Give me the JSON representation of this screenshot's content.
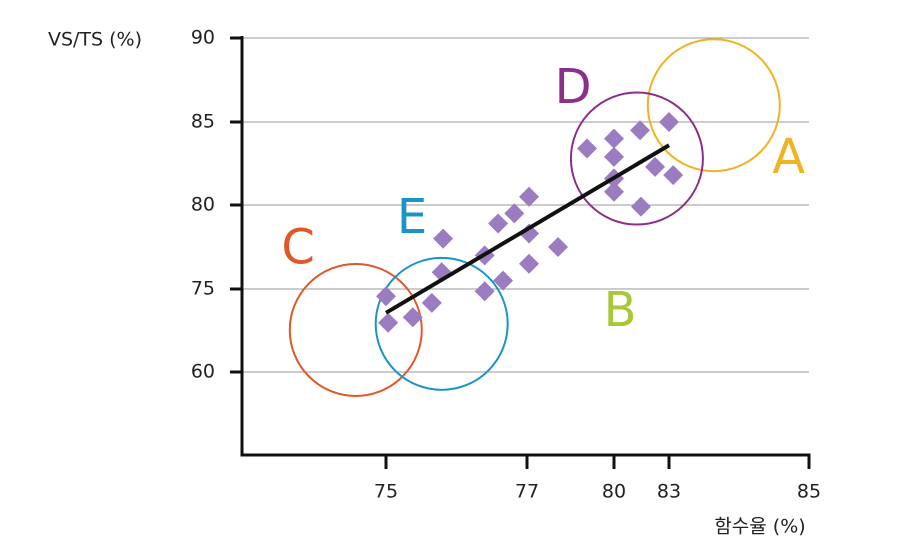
{
  "chart_data": {
    "type": "scatter",
    "y_label": "VS/TS (%)",
    "x_label": "함수율 (%)",
    "xlim": [
      73,
      85
    ],
    "xticks": [
      75,
      77,
      80,
      83,
      85
    ],
    "ylim": [
      45,
      90
    ],
    "yticks": [
      60,
      75,
      80,
      85,
      90
    ],
    "grid": true,
    "series": [
      {
        "color": "#9b7cc0",
        "x": [
          75,
          75.03,
          75.38,
          75.65,
          75.81,
          75.79,
          76.4,
          76.4,
          76.66,
          76.59,
          76.82,
          77.07,
          77.07,
          77.07,
          78.07,
          79.07,
          80,
          80,
          80,
          80,
          81.42,
          81.47,
          82.24,
          83,
          83.06
        ],
        "y": [
          73.7,
          68.9,
          69.9,
          72.5,
          78.0,
          76.0,
          74.6,
          77.0,
          75.5,
          78.9,
          79.5,
          80.5,
          76.5,
          78.3,
          77.5,
          83.4,
          84.0,
          82.9,
          81.6,
          80.8,
          84.5,
          79.9,
          82.3,
          85.0,
          81.8
        ]
      }
    ],
    "trend_line": {
      "color": "#111111",
      "x": [
        75,
        83
      ],
      "y": [
        70.7,
        83.6
      ]
    },
    "circles": [
      {
        "color": "#f0b323",
        "x": 83.64,
        "y": 86.0
      },
      {
        "color": "#e0582a",
        "x": 74.58,
        "y": 67.6
      },
      {
        "color": "#1a94c8",
        "x": 75.79,
        "y": 68.7
      },
      {
        "color": "#8b2f8b",
        "x": 81.25,
        "y": 82.8
      }
    ],
    "annotations": [
      {
        "text": "A",
        "color": "#f0b323",
        "x": 84.71,
        "y": 82.7
      },
      {
        "text": "B",
        "color": "#a8c83a",
        "x": 80.33,
        "y": 70.7
      },
      {
        "text": "C",
        "color": "#e0582a",
        "x": 73.78,
        "y": 77.3
      },
      {
        "text": "D",
        "color": "#8b2f8b",
        "x": 78.59,
        "y": 86.9
      },
      {
        "text": "E",
        "color": "#1a94c8",
        "x": 75.37,
        "y": 79.1
      }
    ]
  }
}
